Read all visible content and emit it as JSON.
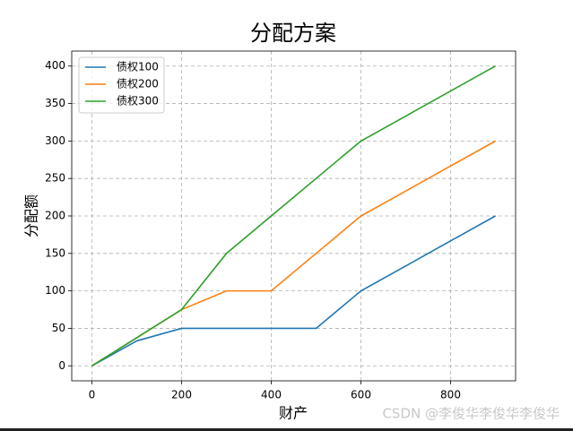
{
  "chart_data": {
    "type": "line",
    "title": "分配方案",
    "xlabel": "财产",
    "ylabel": "分配额",
    "x": [
      0,
      100,
      200,
      300,
      400,
      500,
      600,
      700,
      800,
      900
    ],
    "series": [
      {
        "name": "债权100",
        "color": "#1f77b4",
        "values": [
          0,
          33.3,
          50,
          50,
          50,
          50,
          100,
          133.3,
          166.7,
          200
        ]
      },
      {
        "name": "债权200",
        "color": "#ff7f0e",
        "values": [
          0,
          37.5,
          75,
          100,
          100,
          150,
          200,
          233.3,
          266.7,
          300
        ]
      },
      {
        "name": "债权300",
        "color": "#2ca02c",
        "values": [
          0,
          37.5,
          75,
          150,
          200,
          250,
          300,
          333.3,
          366.7,
          400
        ]
      }
    ],
    "xlim": [
      -45,
      945
    ],
    "xticks": [
      0,
      200,
      400,
      600,
      800
    ],
    "ylim": [
      -20,
      420
    ],
    "yticks": [
      0,
      50,
      100,
      150,
      200,
      250,
      300,
      350,
      400
    ],
    "grid": true,
    "legend": "upper left"
  },
  "watermark": "CSDN @李俊华李俊华李俊华"
}
